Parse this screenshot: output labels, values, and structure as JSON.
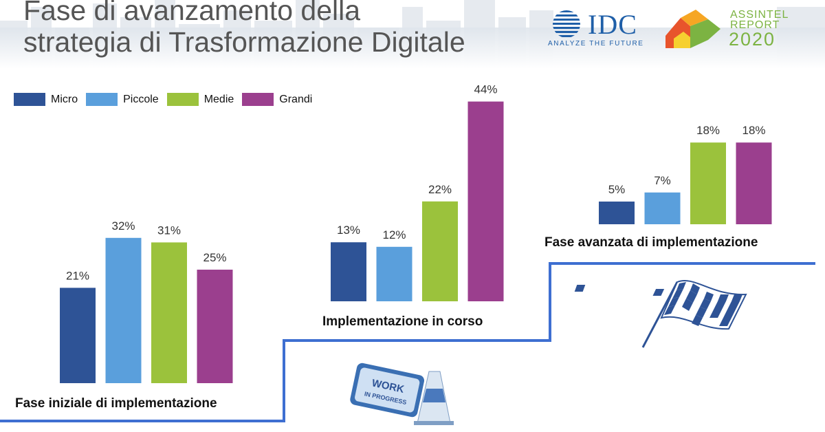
{
  "title_lines": [
    "Fase di avanzamento della",
    "strategia di Trasformazione Digitale"
  ],
  "logos": {
    "idc": {
      "name": "IDC",
      "tagline": "ANALYZE THE FUTURE"
    },
    "assintel": {
      "line1": "ASSINTEL",
      "line2": "REPORT",
      "year": "2020"
    }
  },
  "colors": {
    "Micro": "#2e5396",
    "Piccole": "#5a9fdc",
    "Medie": "#9bc23c",
    "Grandi": "#9b3f8e",
    "staircase": "#3e6fd1"
  },
  "chart_data": {
    "type": "bar",
    "categories": [
      "Fase iniziale di implementazione",
      "Implementazione in corso",
      "Fase avanzata di implementazione"
    ],
    "series": [
      {
        "name": "Micro",
        "values": [
          21,
          13,
          5
        ]
      },
      {
        "name": "Piccole",
        "values": [
          32,
          12,
          7
        ]
      },
      {
        "name": "Medie",
        "values": [
          31,
          22,
          18
        ]
      },
      {
        "name": "Grandi",
        "values": [
          25,
          44,
          18
        ]
      }
    ],
    "value_suffix": "%",
    "legend_position": "top-left",
    "grid": false
  },
  "decorations": {
    "work_sign_text": [
      "WORK",
      "IN PROGRESS"
    ],
    "icons": [
      "work-in-progress-sign-icon",
      "traffic-cone-icon",
      "checkered-flag-icon"
    ]
  }
}
